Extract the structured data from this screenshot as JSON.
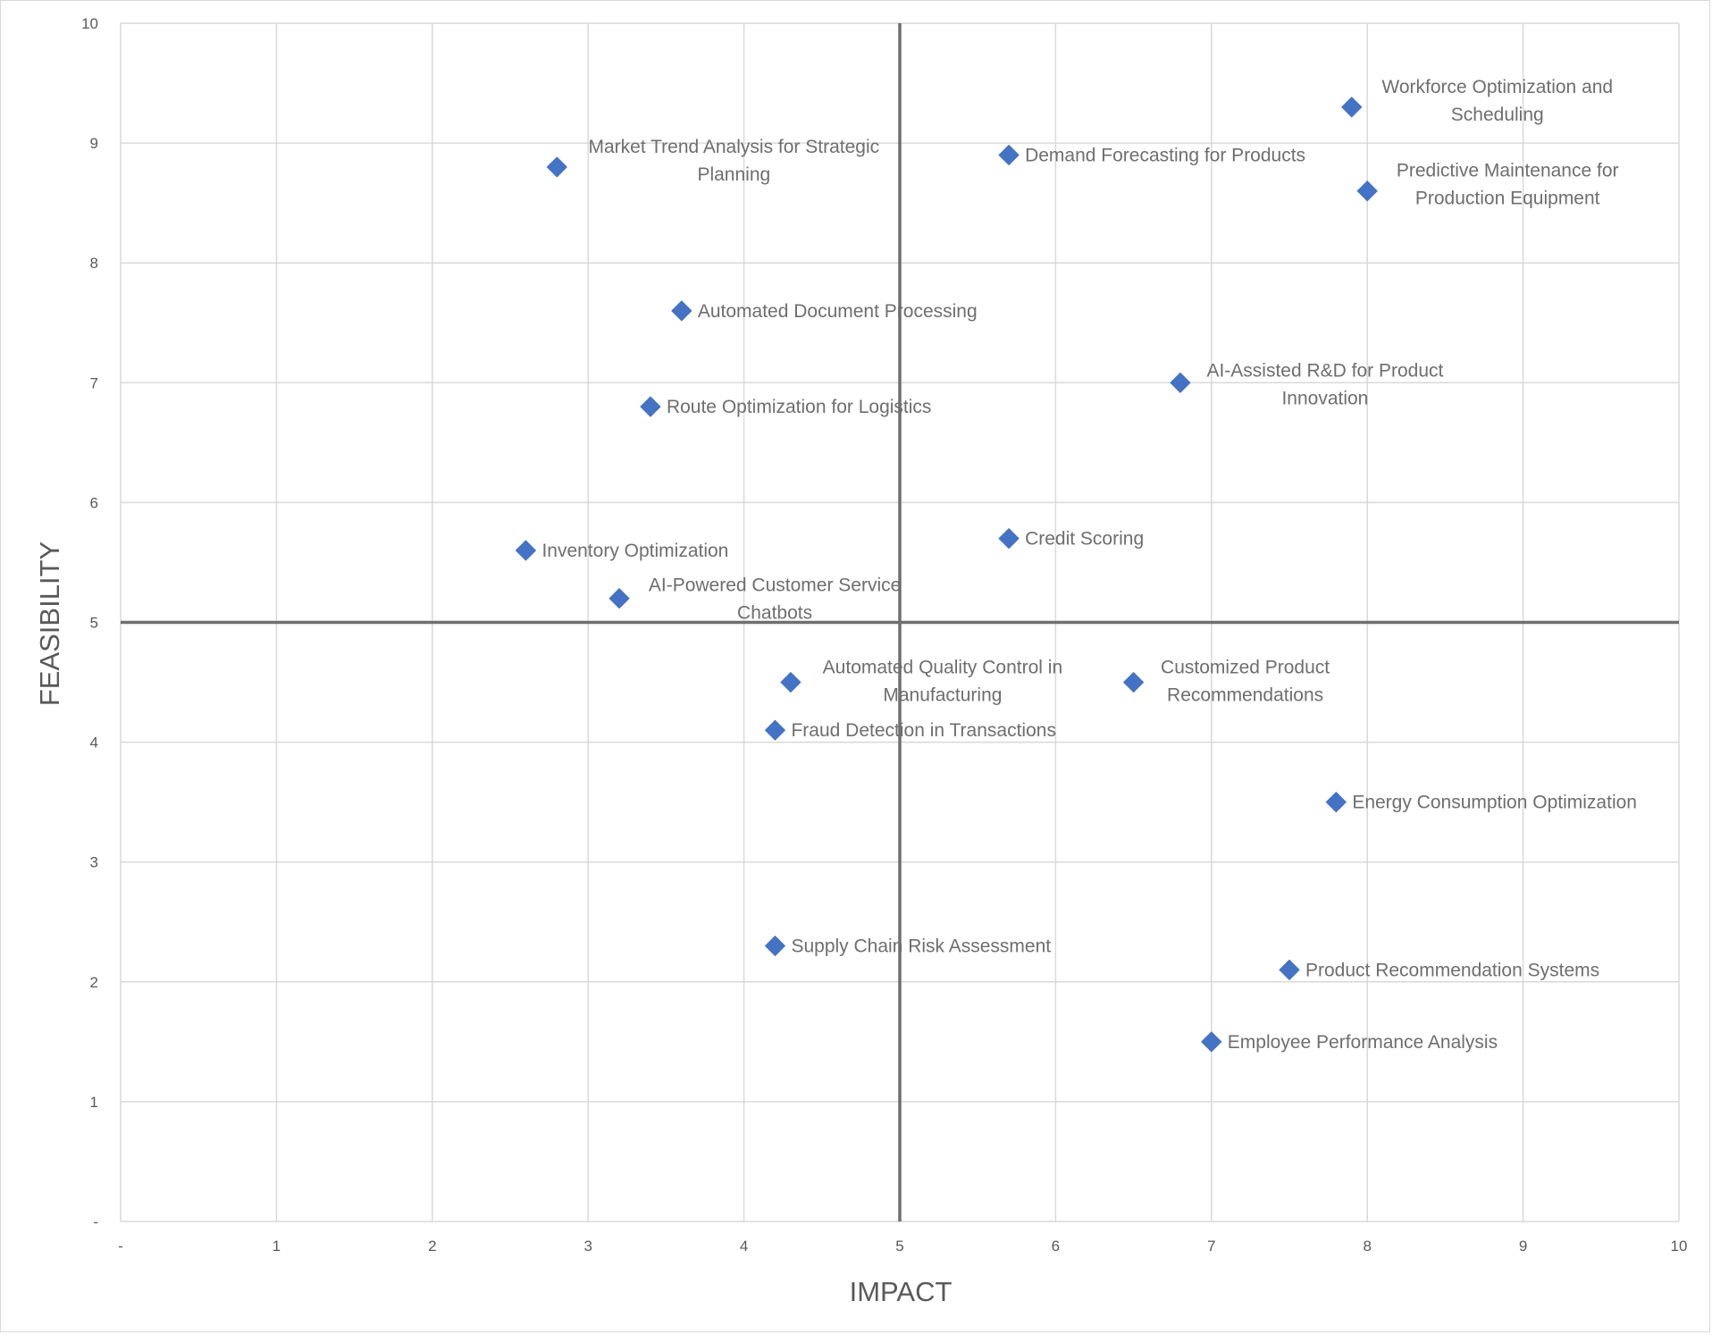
{
  "chart_data": {
    "type": "scatter",
    "title": "",
    "xlabel": "IMPACT",
    "ylabel": "FEASIBILITY",
    "xlim": [
      0,
      10
    ],
    "ylim": [
      0,
      10
    ],
    "x_ticks": [
      "-",
      "1",
      "2",
      "3",
      "4",
      "5",
      "6",
      "7",
      "8",
      "9",
      "10"
    ],
    "y_ticks": [
      "-",
      "1",
      "2",
      "3",
      "4",
      "5",
      "6",
      "7",
      "8",
      "9",
      "10"
    ],
    "grid": true,
    "quadrant_lines": {
      "x": 5,
      "y": 5
    },
    "marker": "diamond",
    "marker_color": "#4472c4",
    "points": [
      {
        "label": "Workforce Optimization and Scheduling",
        "x": 7.9,
        "y": 9.3
      },
      {
        "label": "Market Trend Analysis for Strategic Planning",
        "x": 2.8,
        "y": 8.8
      },
      {
        "label": "Demand Forecasting for Products",
        "x": 5.7,
        "y": 8.9
      },
      {
        "label": "Predictive Maintenance for Production Equipment",
        "x": 8.0,
        "y": 8.6
      },
      {
        "label": "Automated Document Processing",
        "x": 3.6,
        "y": 7.6
      },
      {
        "label": "AI-Assisted R&D for Product Innovation",
        "x": 6.8,
        "y": 7.0
      },
      {
        "label": "Route Optimization for Logistics",
        "x": 3.4,
        "y": 6.8
      },
      {
        "label": "Inventory Optimization",
        "x": 2.6,
        "y": 5.6
      },
      {
        "label": "Credit Scoring",
        "x": 5.7,
        "y": 5.7
      },
      {
        "label": "AI-Powered Customer Service Chatbots",
        "x": 3.2,
        "y": 5.2
      },
      {
        "label": "Automated Quality Control in Manufacturing",
        "x": 4.3,
        "y": 4.5
      },
      {
        "label": "Customized Product Recommendations",
        "x": 6.5,
        "y": 4.5
      },
      {
        "label": "Fraud Detection in Transactions",
        "x": 4.2,
        "y": 4.1
      },
      {
        "label": "Energy Consumption Optimization",
        "x": 7.8,
        "y": 3.5
      },
      {
        "label": "Supply Chain Risk Assessment",
        "x": 4.2,
        "y": 2.3
      },
      {
        "label": "Product Recommendation Systems",
        "x": 7.5,
        "y": 2.1
      },
      {
        "label": "Employee Performance Analysis",
        "x": 7.0,
        "y": 1.5
      }
    ]
  }
}
